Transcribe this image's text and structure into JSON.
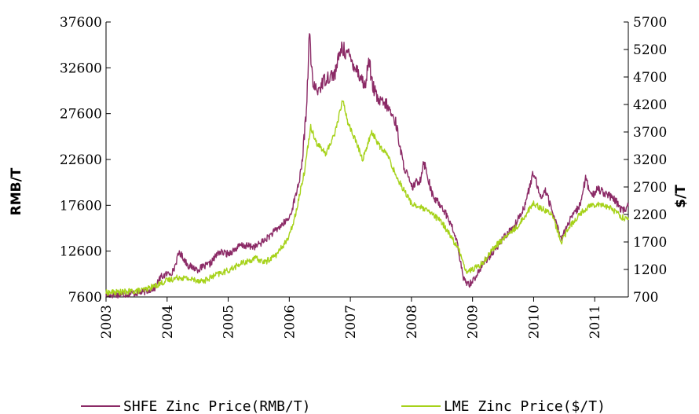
{
  "chart_data": {
    "type": "line",
    "title": "",
    "xlabel": "",
    "ylabel_left": "RMB/T",
    "ylabel_right": "$/T",
    "x_ticks": [
      "2003",
      "2004",
      "2005",
      "2006",
      "2007",
      "2008",
      "2009",
      "2010",
      "2011"
    ],
    "xlim": [
      2003.0,
      2011.55
    ],
    "y_left_ticks": [
      "7600",
      "12600",
      "17600",
      "22600",
      "27600",
      "32600",
      "37600"
    ],
    "y_left_range": [
      7600,
      37600
    ],
    "y_right_ticks": [
      "700",
      "1200",
      "1700",
      "2200",
      "2700",
      "3200",
      "3700",
      "4200",
      "4700",
      "5200",
      "5700"
    ],
    "y_right_range": [
      700,
      5700
    ],
    "legend_position": "bottom",
    "grid": false,
    "series": [
      {
        "name": "SHFE Zinc Price(RMB/T)",
        "axis": "left",
        "color": "#8b2a66",
        "points": [
          [
            2003.0,
            7800
          ],
          [
            2003.3,
            7900
          ],
          [
            2003.6,
            8100
          ],
          [
            2003.8,
            8600
          ],
          [
            2003.9,
            9800
          ],
          [
            2004.0,
            10100
          ],
          [
            2004.1,
            10400
          ],
          [
            2004.2,
            12500
          ],
          [
            2004.35,
            11000
          ],
          [
            2004.5,
            10600
          ],
          [
            2004.7,
            11200
          ],
          [
            2004.85,
            12500
          ],
          [
            2005.0,
            12300
          ],
          [
            2005.2,
            13200
          ],
          [
            2005.45,
            13100
          ],
          [
            2005.6,
            13800
          ],
          [
            2005.8,
            15000
          ],
          [
            2006.0,
            16200
          ],
          [
            2006.1,
            18500
          ],
          [
            2006.2,
            21500
          ],
          [
            2006.28,
            28000
          ],
          [
            2006.33,
            36500
          ],
          [
            2006.38,
            31000
          ],
          [
            2006.45,
            30000
          ],
          [
            2006.6,
            31500
          ],
          [
            2006.75,
            32000
          ],
          [
            2006.85,
            34800
          ],
          [
            2006.95,
            34200
          ],
          [
            2007.1,
            32500
          ],
          [
            2007.25,
            30500
          ],
          [
            2007.3,
            34000
          ],
          [
            2007.35,
            31000
          ],
          [
            2007.45,
            29000
          ],
          [
            2007.6,
            28500
          ],
          [
            2007.75,
            26500
          ],
          [
            2007.85,
            22500
          ],
          [
            2008.0,
            19500
          ],
          [
            2008.15,
            20500
          ],
          [
            2008.2,
            22500
          ],
          [
            2008.35,
            18500
          ],
          [
            2008.5,
            17500
          ],
          [
            2008.65,
            15500
          ],
          [
            2008.75,
            13500
          ],
          [
            2008.85,
            9500
          ],
          [
            2008.95,
            9000
          ],
          [
            2009.05,
            9800
          ],
          [
            2009.2,
            11500
          ],
          [
            2009.35,
            12500
          ],
          [
            2009.5,
            14000
          ],
          [
            2009.7,
            15500
          ],
          [
            2009.85,
            17500
          ],
          [
            2010.0,
            21200
          ],
          [
            2010.1,
            18500
          ],
          [
            2010.2,
            19200
          ],
          [
            2010.3,
            17000
          ],
          [
            2010.45,
            14000
          ],
          [
            2010.6,
            16000
          ],
          [
            2010.75,
            17500
          ],
          [
            2010.85,
            20500
          ],
          [
            2010.95,
            18500
          ],
          [
            2011.05,
            19500
          ],
          [
            2011.2,
            18800
          ],
          [
            2011.35,
            18000
          ],
          [
            2011.45,
            17000
          ],
          [
            2011.55,
            17500
          ]
        ]
      },
      {
        "name": "LME Zinc Price($/T)",
        "axis": "right",
        "color": "#a6d21a",
        "points": [
          [
            2003.0,
            780
          ],
          [
            2003.3,
            790
          ],
          [
            2003.6,
            820
          ],
          [
            2003.8,
            900
          ],
          [
            2004.0,
            1000
          ],
          [
            2004.2,
            1060
          ],
          [
            2004.4,
            1020
          ],
          [
            2004.6,
            990
          ],
          [
            2004.8,
            1100
          ],
          [
            2005.0,
            1180
          ],
          [
            2005.2,
            1300
          ],
          [
            2005.45,
            1400
          ],
          [
            2005.6,
            1330
          ],
          [
            2005.8,
            1480
          ],
          [
            2006.0,
            1800
          ],
          [
            2006.1,
            2200
          ],
          [
            2006.25,
            3000
          ],
          [
            2006.35,
            3800
          ],
          [
            2006.45,
            3500
          ],
          [
            2006.6,
            3300
          ],
          [
            2006.75,
            3700
          ],
          [
            2006.88,
            4300
          ],
          [
            2006.95,
            3900
          ],
          [
            2007.1,
            3500
          ],
          [
            2007.2,
            3200
          ],
          [
            2007.35,
            3700
          ],
          [
            2007.5,
            3400
          ],
          [
            2007.6,
            3300
          ],
          [
            2007.75,
            2900
          ],
          [
            2007.85,
            2700
          ],
          [
            2008.0,
            2400
          ],
          [
            2008.2,
            2300
          ],
          [
            2008.35,
            2200
          ],
          [
            2008.5,
            2050
          ],
          [
            2008.65,
            1800
          ],
          [
            2008.8,
            1500
          ],
          [
            2008.9,
            1150
          ],
          [
            2009.0,
            1200
          ],
          [
            2009.15,
            1300
          ],
          [
            2009.35,
            1600
          ],
          [
            2009.55,
            1800
          ],
          [
            2009.75,
            2000
          ],
          [
            2009.9,
            2250
          ],
          [
            2010.0,
            2400
          ],
          [
            2010.15,
            2300
          ],
          [
            2010.3,
            2200
          ],
          [
            2010.45,
            1700
          ],
          [
            2010.6,
            2000
          ],
          [
            2010.75,
            2200
          ],
          [
            2010.9,
            2350
          ],
          [
            2011.05,
            2400
          ],
          [
            2011.2,
            2350
          ],
          [
            2011.35,
            2250
          ],
          [
            2011.45,
            2150
          ],
          [
            2011.55,
            2100
          ]
        ]
      }
    ]
  }
}
